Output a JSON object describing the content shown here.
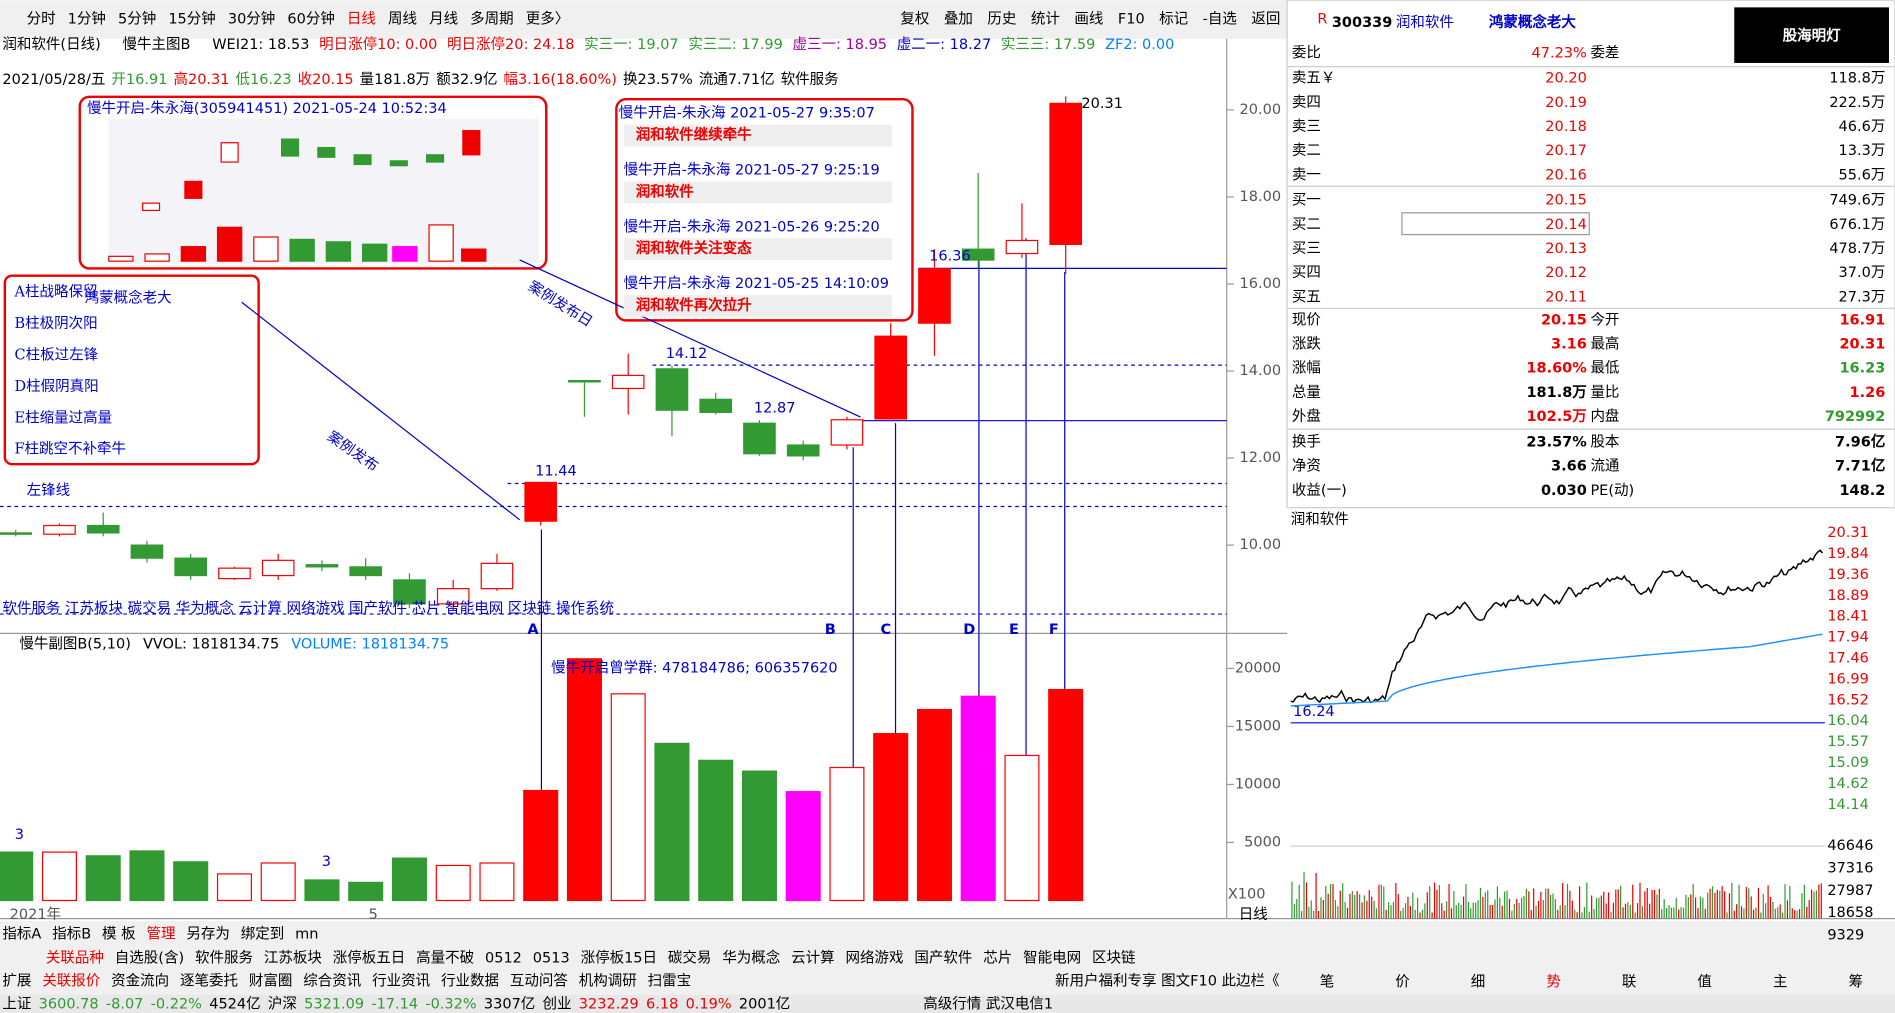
{
  "toolbar": {
    "periods": [
      "分时",
      "1分钟",
      "5分钟",
      "15分钟",
      "30分钟",
      "60分钟",
      "日线",
      "周线",
      "月线",
      "多周期",
      "更多〉"
    ],
    "tools": [
      "复权",
      "叠加",
      "历史",
      "统计",
      "画线",
      "F10",
      "标记",
      "-自选",
      "返回"
    ]
  },
  "info_bar": {
    "name": "润和软件(日线)",
    "indicator": "慢牛主图B",
    "items": [
      "WEI21: 18.53",
      "明日涨停10: 0.00",
      "明日涨停20: 24.18",
      "实三一: 19.07",
      "实三二: 17.99",
      "虚三一: 18.95",
      "虚二一: 18.27",
      "实三三: 17.59",
      "ZF2: 0.00"
    ]
  },
  "ohlc_bar": [
    "2021/05/28/五",
    "开16.91",
    "高20.31",
    "低16.23",
    "收20.15",
    "量181.8万",
    "额32.9亿",
    "幅3.16(18.60%)",
    "换23.57%",
    "流通7.71亿",
    "软件服务"
  ],
  "chart_data": [
    {
      "type": "candlestick",
      "ylim": [
        8.36,
        20.44
      ],
      "yticks": [
        {
          "value": 10,
          "label": "10.00"
        },
        {
          "value": 12,
          "label": "12.00"
        },
        {
          "value": 14,
          "label": "14.00"
        },
        {
          "value": 16,
          "label": "16.00"
        },
        {
          "value": 18,
          "label": "18.00"
        },
        {
          "value": 20,
          "label": "20.00"
        }
      ],
      "open": [
        10.28,
        10.25,
        10.45,
        10.0,
        9.7,
        9.23,
        9.3,
        9.55,
        9.5,
        9.2,
        8.65,
        9.0,
        10.55,
        13.78,
        13.6,
        14.05,
        13.35,
        12.8,
        12.3,
        12.3,
        12.9,
        15.1,
        16.8,
        16.7,
        16.91
      ],
      "high": [
        10.35,
        10.5,
        10.75,
        10.1,
        9.8,
        9.5,
        9.8,
        9.65,
        9.7,
        9.35,
        9.2,
        9.8,
        11.44,
        13.78,
        14.4,
        14.12,
        13.5,
        12.87,
        12.4,
        12.95,
        15.1,
        16.8,
        18.55,
        17.85,
        20.31
      ],
      "low": [
        10.2,
        10.2,
        10.2,
        9.6,
        9.2,
        9.2,
        9.2,
        9.4,
        9.2,
        8.55,
        8.5,
        8.95,
        10.45,
        12.95,
        13.0,
        12.5,
        13.0,
        12.05,
        11.95,
        12.2,
        12.9,
        14.35,
        16.36,
        16.6,
        16.23
      ],
      "close": [
        10.25,
        10.45,
        10.28,
        9.7,
        9.3,
        9.47,
        9.65,
        9.5,
        9.3,
        8.65,
        9.0,
        9.58,
        11.44,
        13.75,
        13.9,
        13.1,
        13.05,
        12.1,
        12.05,
        12.88,
        14.8,
        16.35,
        16.55,
        17.0,
        20.15
      ],
      "up_color": "#ff0000",
      "down_color": "#339933",
      "filled_up": [
        false,
        false,
        false,
        false,
        false,
        false,
        false,
        false,
        false,
        false,
        false,
        false,
        true,
        false,
        false,
        false,
        false,
        false,
        false,
        false,
        true,
        true,
        false,
        false,
        true
      ],
      "price_labels": [
        "11.44",
        "14.12",
        "12.87",
        "16.36",
        "20.31"
      ]
    },
    {
      "type": "bar",
      "header": "慢牛副图B(5,10)",
      "vvol": "VVOL: 1818134.75",
      "volume": "VOLUME: 1818134.75",
      "ylim": [
        0,
        22708
      ],
      "yticks": [
        5000,
        10000,
        15000,
        20000
      ],
      "unit": "X100",
      "values": [
        4170,
        4170,
        3850,
        4270,
        3330,
        2290,
        3230,
        1770,
        1560,
        3650,
        3020,
        3230,
        9480,
        20830,
        17810,
        13540,
        12080,
        11150,
        9380,
        11460,
        14380,
        16460,
        17600,
        12500,
        18180
      ],
      "colors": [
        "#339933",
        "#ff0000",
        "#339933",
        "#339933",
        "#339933",
        "#ff0000",
        "#ff0000",
        "#339933",
        "#339933",
        "#339933",
        "#ff0000",
        "#ff0000",
        "#ff0000",
        "#ff0000",
        "#ff0000",
        "#339933",
        "#339933",
        "#339933",
        "#ff00ff",
        "#ff0000",
        "#ff0000",
        "#ff0000",
        "#ff00ff",
        "#ff0000",
        "#ff0000"
      ],
      "filled": [
        true,
        false,
        true,
        true,
        true,
        false,
        false,
        true,
        true,
        true,
        false,
        false,
        true,
        true,
        false,
        true,
        true,
        true,
        true,
        false,
        true,
        true,
        true,
        false,
        true
      ],
      "annotations": [
        "3",
        "3"
      ],
      "x_labels": [
        "2021年",
        "5"
      ],
      "note": "慢牛开启曾学群: 478184786; 606357620"
    }
  ],
  "annotations": {
    "shot_title": "慢牛开启-朱永海(305941451) 2021-05-24 10:52:34",
    "messages": [
      {
        "time": "慢牛开启-朱永海 2021-05-27 9:35:07",
        "text": "润和软件继续牵牛"
      },
      {
        "time": "慢牛开启-朱永海 2021-05-27 9:25:19",
        "text": "润和软件"
      },
      {
        "time": "慢牛开启-朱永海 2021-05-26 9:25:20",
        "text": "润和软件关注变态"
      },
      {
        "time": "慢牛开启-朱永海 2021-05-25 14:10:09",
        "text": "润和软件再次拉升"
      }
    ],
    "legend": [
      "A柱战略保留",
      "B柱极阴次阳",
      "C柱板过左锋",
      "D柱假阴真阳",
      "E柱缩量过高量",
      "F柱跳空不补牵牛"
    ],
    "overlay": "鸿蒙概念老大",
    "left_peak": "左锋线",
    "release": "案例发布",
    "release_day": "案例发布日",
    "letters": [
      "A",
      "B",
      "C",
      "D",
      "E",
      "F"
    ],
    "concepts": "软件服务 江苏板块 碳交易 华为概念 云计算 网络游戏 国产软件 芯片 智能电网 区块链 操作系统",
    "period": "日线"
  },
  "quote": {
    "r": "R",
    "code": "300339",
    "name": "润和软件",
    "slogan": "鸿蒙概念老大",
    "logo": "股海明灯",
    "ratio": {
      "label": "委比",
      "value": "47.23%",
      "label2": "委差"
    },
    "book": [
      {
        "label": "卖五￥",
        "price": "20.20",
        "volume": "118.8万"
      },
      {
        "label": "卖四",
        "price": "20.19",
        "volume": "222.5万"
      },
      {
        "label": "卖三",
        "price": "20.18",
        "volume": "46.6万"
      },
      {
        "label": "卖二",
        "price": "20.17",
        "volume": "13.3万"
      },
      {
        "label": "卖一",
        "price": "20.16",
        "volume": "55.6万"
      },
      {
        "label": "买一",
        "price": "20.15",
        "volume": "749.6万"
      },
      {
        "label": "买二",
        "price": "20.14",
        "volume": "676.1万"
      },
      {
        "label": "买三",
        "price": "20.13",
        "volume": "478.7万"
      },
      {
        "label": "买四",
        "price": "20.12",
        "volume": "37.0万"
      },
      {
        "label": "买五",
        "price": "20.11",
        "volume": "27.3万"
      }
    ],
    "stats": [
      {
        "label": "现价",
        "value": "20.15",
        "label2": "今开",
        "value2": "16.91"
      },
      {
        "label": "涨跌",
        "value": "3.16",
        "label2": "最高",
        "value2": "20.31"
      },
      {
        "label": "涨幅",
        "value": "18.60%",
        "label2": "最低",
        "value2": "16.23"
      },
      {
        "label": "总量",
        "value": "181.8万",
        "label2": "量比",
        "value2": "1.26"
      },
      {
        "label": "外盘",
        "value": "102.5万",
        "label2": "内盘",
        "value2": "792992"
      },
      {
        "label": "换手",
        "value": "23.57%",
        "label2": "股本",
        "value2": "7.96亿"
      },
      {
        "label": "净资",
        "value": "3.66",
        "label2": "流通",
        "value2": "7.71亿"
      },
      {
        "label": "收益(一)",
        "value": "0.030",
        "label2": "PE(动)",
        "value2": "148.2"
      }
    ]
  },
  "intraday": {
    "title": "润和软件",
    "price_labels": [
      "20.31",
      "19.84",
      "19.36",
      "18.89",
      "18.41",
      "17.94",
      "17.46",
      "16.99",
      "16.52",
      "16.04",
      "15.57",
      "15.09",
      "14.62",
      "14.14"
    ],
    "volume_labels": [
      "46646",
      "37316",
      "27987",
      "18658",
      "9329"
    ],
    "left_label": "16.24",
    "tabs": [
      "笔",
      "价",
      "细",
      "势",
      "联",
      "值",
      "主",
      "筹"
    ]
  },
  "bottom": {
    "row1": [
      "指标A",
      "指标B",
      "模 板",
      "管理",
      "另存为",
      "绑定到",
      "mn"
    ],
    "row2": [
      "关联品种",
      "自选股(含)",
      "软件服务",
      "江苏板块",
      "涨停板五日",
      "高量不破",
      "0512",
      "0513",
      "涨停板15日",
      "碳交易",
      "华为概念",
      "云计算",
      "网络游戏",
      "国产软件",
      "芯片",
      "智能电网",
      "区块链"
    ],
    "row3": [
      "扩展",
      "关联报价",
      "资金流向",
      "逐笔委托",
      "财富圈",
      "综合资讯",
      "行业资讯",
      "行业数据",
      "互动问答",
      "机构调研",
      "扫雷宝"
    ],
    "row3_right": "新用户福利专享 图文F10 此边栏《",
    "status": [
      "上证",
      "3600.78",
      "-8.07",
      "-0.22%",
      "4524亿",
      "沪深",
      "5321.09",
      "-17.14",
      "-0.32%",
      "3307亿",
      "创业",
      "3232.29",
      "6.18",
      "0.19%",
      "2001亿",
      "高级行情 武汉电信1"
    ]
  }
}
